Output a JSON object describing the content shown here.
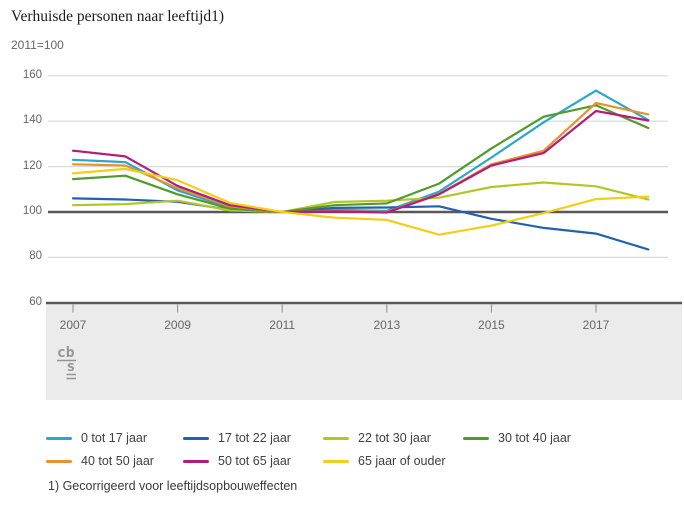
{
  "header": {
    "title": "Verhuisde personen naar leeftijd1)",
    "subtitle": "2011=100"
  },
  "footnote": "1) Gecorrigeerd voor leeftijdsopbouweffecten",
  "logo_text": "cbs",
  "colors": {
    "grid": "#d9d9d9",
    "axis_dark": "#58585a",
    "band": "#ebebeb",
    "tick": "#8c8c8c",
    "label_text": "#666666"
  },
  "chart_data": {
    "type": "line",
    "title": "Verhuisde personen naar leeftijd1)",
    "subtitle": "2011=100",
    "x": [
      2007,
      2008,
      2009,
      2010,
      2011,
      2012,
      2013,
      2014,
      2015,
      2016,
      2017,
      2018
    ],
    "xticks": [
      2007,
      2009,
      2011,
      2013,
      2015,
      2017
    ],
    "xtick_labels": [
      "2007",
      "2009",
      "2011",
      "2013",
      "2015",
      "2017"
    ],
    "yticks": [
      60,
      80,
      100,
      120,
      140,
      160
    ],
    "ylim": [
      60,
      160
    ],
    "baseline": 100,
    "grid": true,
    "legend_position": "bottom",
    "series": [
      {
        "name": "0 tot 17 jaar",
        "color": "#2ba6cb",
        "values": [
          123,
          122,
          109.5,
          102,
          100,
          101,
          100.5,
          109,
          124,
          139.5,
          153.5,
          140.5
        ]
      },
      {
        "name": "17 tot 22 jaar",
        "color": "#2361ae",
        "values": [
          106,
          105.5,
          104.5,
          101,
          100,
          101.8,
          102,
          102.5,
          97,
          93,
          90.5,
          83.5
        ]
      },
      {
        "name": "22 tot 30 jaar",
        "color": "#b2c727",
        "values": [
          103,
          103.5,
          105,
          100.7,
          100,
          104.4,
          105,
          106.3,
          111,
          113,
          111.3,
          105.5
        ]
      },
      {
        "name": "30 tot 40 jaar",
        "color": "#509b2b",
        "values": [
          114.5,
          116,
          107.8,
          101.5,
          100,
          103,
          103.8,
          112.5,
          128,
          142,
          147,
          137
        ]
      },
      {
        "name": "40 tot 50 jaar",
        "color": "#e2952f",
        "values": [
          121,
          120.5,
          110.5,
          102.5,
          100,
          100.5,
          100,
          108,
          121,
          127,
          148,
          143
        ]
      },
      {
        "name": "50 tot 65 jaar",
        "color": "#b01d7d",
        "values": [
          127,
          124.5,
          111.5,
          103,
          100,
          100.3,
          99.8,
          107.8,
          120.5,
          126,
          144.5,
          140.3
        ]
      },
      {
        "name": "65 jaar of ouder",
        "color": "#f3ce17",
        "values": [
          117,
          119,
          114,
          104,
          100,
          97.5,
          96.5,
          90,
          94,
          99.5,
          105.7,
          106.8
        ]
      }
    ]
  }
}
